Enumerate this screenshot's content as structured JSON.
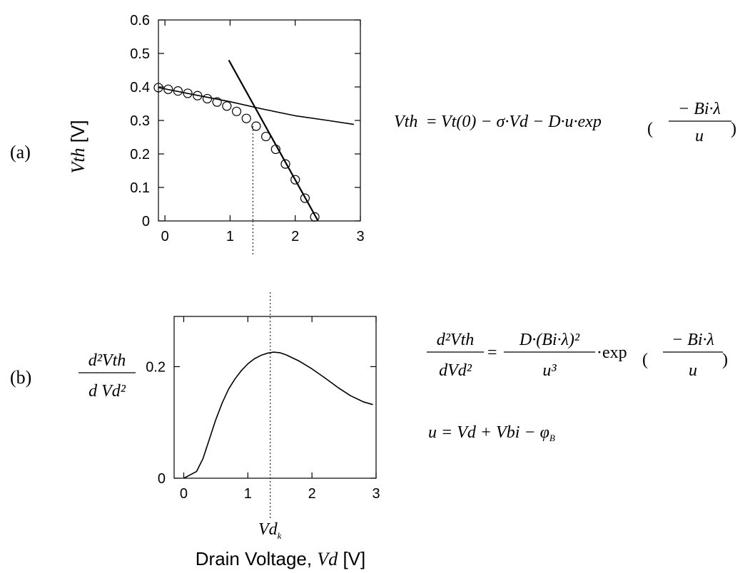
{
  "panel_labels": {
    "a": "(a)",
    "b": "(b)"
  },
  "xlabel_text": "Drain Voltage, ",
  "xlabel_var": "Vd",
  "xlabel_unit": " [V]",
  "vdk_marker": {
    "base": "Vd",
    "sub": "k",
    "x": 1.35
  },
  "equations": {
    "a": {
      "lhs": "Vth",
      "rhs": "Vt(0) − σ·Vd − D·u·exp",
      "frac_num": "− Bi·λ",
      "frac_den": "u"
    },
    "b": {
      "lhs_num": "d²Vth",
      "lhs_den": "dVd²",
      "rhs_num": "D·(Bi·λ)²",
      "rhs_den": "u³",
      "exp_text": "·exp",
      "frac_num": "− Bi·λ",
      "frac_den": "u"
    },
    "u_def": {
      "text": "u = Vd + Vbi − φ",
      "sub": "B"
    }
  },
  "chart_data": [
    {
      "type": "line",
      "title": "",
      "xlabel": "",
      "ylabel": "Vth [V]",
      "ylabel_var": "Vth",
      "ylabel_unit": " [V]",
      "xlim": [
        -0.1,
        3.0
      ],
      "ylim": [
        0,
        0.6
      ],
      "xticks": [
        0,
        1,
        2,
        3
      ],
      "yticks": [
        0,
        0.1,
        0.2,
        0.3,
        0.4,
        0.5,
        0.6
      ],
      "ytick_labels": [
        "0",
        "0.1",
        "0.2",
        "0.3",
        "0.4",
        "0.5",
        "0.6"
      ],
      "vline_x": 1.35,
      "series": [
        {
          "style": "markers",
          "x": [
            -0.1,
            0.05,
            0.2,
            0.35,
            0.5,
            0.65,
            0.8,
            0.95,
            1.1,
            1.25,
            1.4,
            1.55,
            1.7,
            1.85,
            2.0,
            2.15,
            2.3
          ],
          "y": [
            0.398,
            0.393,
            0.388,
            0.381,
            0.374,
            0.365,
            0.355,
            0.343,
            0.327,
            0.306,
            0.283,
            0.252,
            0.214,
            0.17,
            0.123,
            0.068,
            0.012
          ]
        },
        {
          "style": "line",
          "x": [
            -0.1,
            0.5,
            1.0,
            1.5,
            2.0,
            2.5,
            2.9
          ],
          "y": [
            0.398,
            0.375,
            0.356,
            0.334,
            0.314,
            0.3,
            0.288
          ]
        },
        {
          "style": "line",
          "x": [
            0.98,
            2.35
          ],
          "y": [
            0.48,
            0.0
          ]
        }
      ]
    },
    {
      "type": "line",
      "title": "",
      "xlabel": "Drain Voltage, Vd [V]",
      "ylabel": "d²Vth / d Vd²",
      "ylabel_num": "d²Vth",
      "ylabel_den": "d Vd²",
      "xlim": [
        -0.15,
        3.0
      ],
      "ylim": [
        0,
        0.29
      ],
      "xticks": [
        0,
        1,
        2,
        3
      ],
      "yticks": [
        0,
        0.2
      ],
      "ytick_labels": [
        "0",
        "0.2"
      ],
      "vline_x": 1.35,
      "series": [
        {
          "style": "line",
          "x": [
            0.0,
            0.1,
            0.2,
            0.3,
            0.4,
            0.5,
            0.6,
            0.7,
            0.8,
            0.9,
            1.0,
            1.1,
            1.2,
            1.3,
            1.4,
            1.5,
            1.6,
            1.8,
            2.0,
            2.2,
            2.4,
            2.6,
            2.8,
            2.95
          ],
          "y": [
            0.0,
            0.006,
            0.012,
            0.035,
            0.07,
            0.105,
            0.135,
            0.16,
            0.178,
            0.193,
            0.205,
            0.214,
            0.22,
            0.224,
            0.226,
            0.225,
            0.221,
            0.21,
            0.196,
            0.18,
            0.163,
            0.148,
            0.137,
            0.132
          ]
        }
      ]
    }
  ]
}
